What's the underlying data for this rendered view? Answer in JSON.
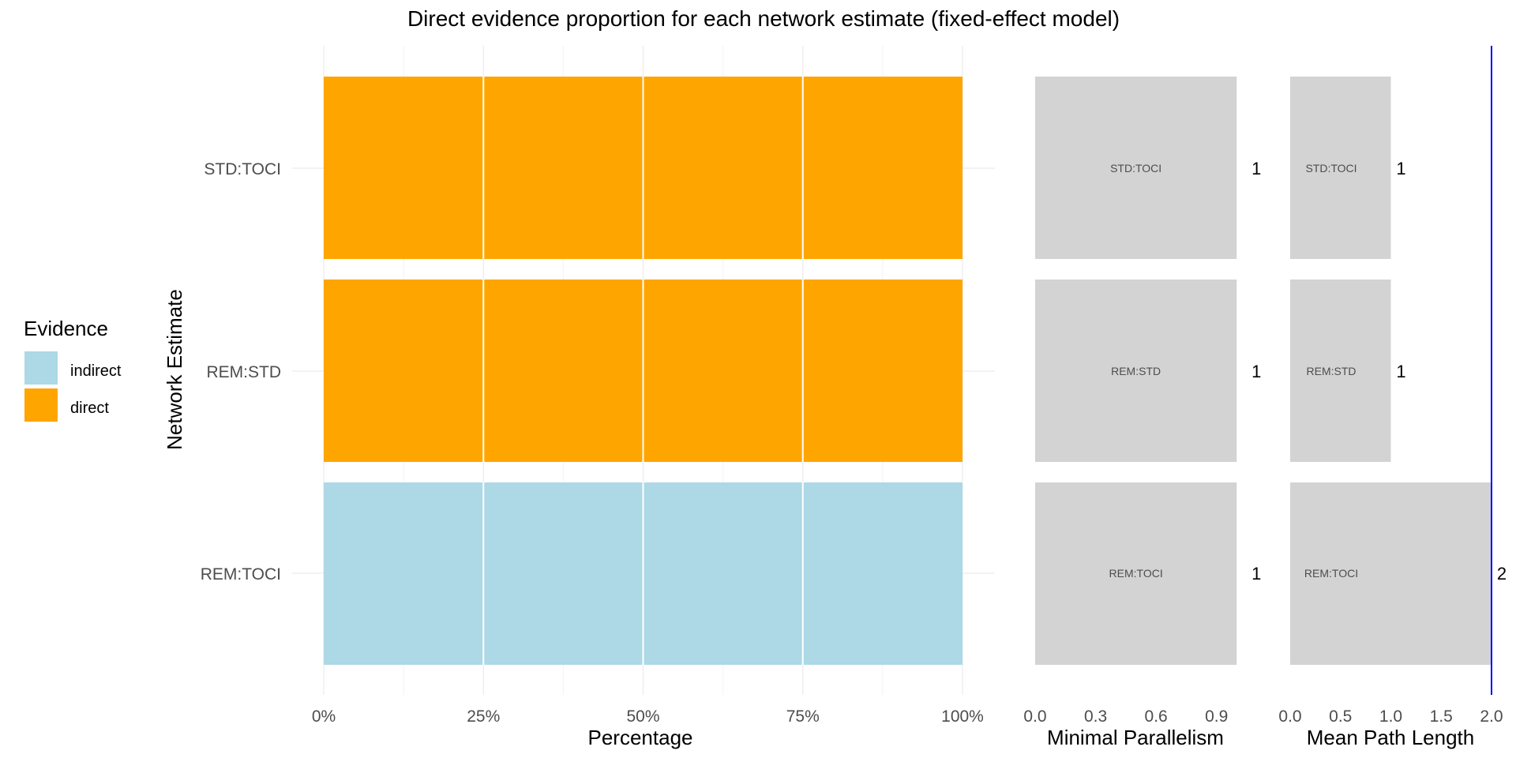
{
  "chart_data": {
    "title": "Direct evidence proportion for each network estimate (fixed-effect model)",
    "y_axis_label": "Network Estimate",
    "categories": [
      "STD:TOCI",
      "REM:STD",
      "REM:TOCI"
    ],
    "legend": {
      "title": "Evidence",
      "position": "left",
      "items": [
        {
          "label": "indirect",
          "color": "#add8e6"
        },
        {
          "label": "direct",
          "color": "#ffa500"
        }
      ]
    },
    "panels": [
      {
        "type": "bar",
        "orientation": "horizontal",
        "stacked": true,
        "xlabel": "Percentage",
        "xlim": [
          0,
          1
        ],
        "xticks": [
          "0%",
          "25%",
          "50%",
          "75%",
          "100%"
        ],
        "grid": true,
        "series": [
          {
            "name": "direct",
            "values": [
              1,
              1,
              0
            ]
          },
          {
            "name": "indirect",
            "values": [
              0,
              0,
              1
            ]
          }
        ]
      },
      {
        "type": "bar",
        "orientation": "horizontal",
        "xlabel": "Minimal Parallelism",
        "xlim": [
          0,
          1.05
        ],
        "xticks": [
          "0.0",
          "0.3",
          "0.6",
          "0.9"
        ],
        "bar_color": "#d3d3d3",
        "values": [
          1,
          1,
          1
        ],
        "value_labels": [
          "1",
          "1",
          "1"
        ]
      },
      {
        "type": "bar",
        "orientation": "horizontal",
        "xlabel": "Mean Path Length",
        "xlim": [
          0,
          2
        ],
        "xticks": [
          "0.0",
          "0.5",
          "1.0",
          "1.5",
          "2.0"
        ],
        "bar_color": "#d3d3d3",
        "reference_line": {
          "x": 2,
          "color": "#0000ff"
        },
        "values": [
          1,
          1,
          2
        ],
        "value_labels": [
          "1",
          "1",
          "2"
        ]
      }
    ]
  }
}
